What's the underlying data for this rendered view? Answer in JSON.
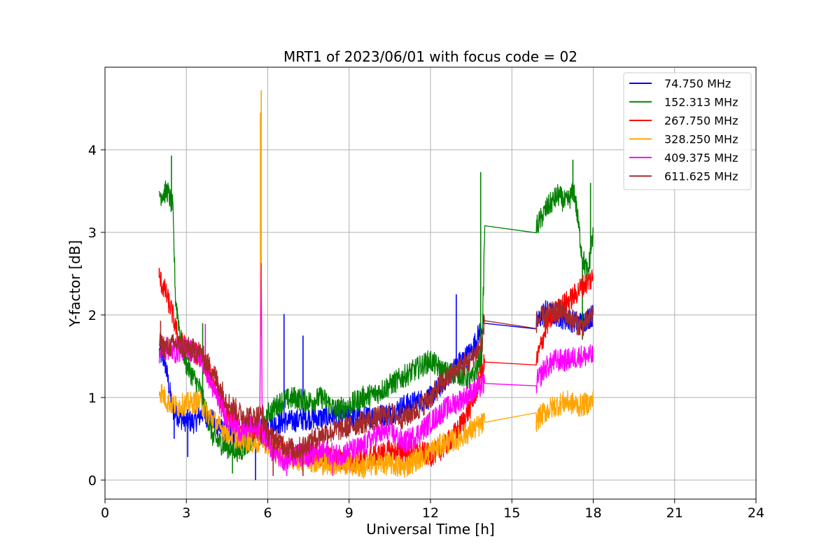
{
  "chart_data": {
    "type": "line",
    "title": "MRT1 of 2023/06/01 with focus code = 02",
    "xlabel": "Universal Time [h]",
    "ylabel": "Y-factor [dB]",
    "xlim": [
      0,
      24
    ],
    "ylim": [
      -0.23,
      5.0
    ],
    "xticks": [
      0,
      3,
      6,
      9,
      12,
      15,
      18,
      21,
      24
    ],
    "yticks": [
      0,
      1,
      2,
      3,
      4
    ],
    "grid": true,
    "legend_position": "top-right",
    "series": [
      {
        "name": " 74.750 MHz",
        "color": "#0000ff",
        "points": [
          [
            2.0,
            1.55
          ],
          [
            2.2,
            1.45
          ],
          [
            2.5,
            0.85
          ],
          [
            2.8,
            0.75
          ],
          [
            3.0,
            0.72
          ],
          [
            3.3,
            0.7
          ],
          [
            3.6,
            0.82
          ],
          [
            4.0,
            0.7
          ],
          [
            4.5,
            0.55
          ],
          [
            5.0,
            0.5
          ],
          [
            5.5,
            0.6
          ],
          [
            5.8,
            0.6
          ],
          [
            6.0,
            0.65
          ],
          [
            6.5,
            0.7
          ],
          [
            7.0,
            0.72
          ],
          [
            7.5,
            0.75
          ],
          [
            8.0,
            0.75
          ],
          [
            8.5,
            0.78
          ],
          [
            9.0,
            0.78
          ],
          [
            9.5,
            0.75
          ],
          [
            10.0,
            0.78
          ],
          [
            10.5,
            0.8
          ],
          [
            11.0,
            0.9
          ],
          [
            11.5,
            0.95
          ],
          [
            12.0,
            1.0
          ],
          [
            12.5,
            1.2
          ],
          [
            13.0,
            1.4
          ],
          [
            13.5,
            1.55
          ],
          [
            13.95,
            1.9
          ],
          [
            15.9,
            1.89
          ],
          [
            16.2,
            2.05
          ],
          [
            16.6,
            2.0
          ],
          [
            17.0,
            1.95
          ],
          [
            17.5,
            1.9
          ],
          [
            18.0,
            2.0
          ]
        ],
        "spikes": [
          [
            2.55,
            0.5
          ],
          [
            3.05,
            0.28
          ],
          [
            5.55,
            0.0
          ],
          [
            6.6,
            2.01
          ],
          [
            7.3,
            1.75
          ],
          [
            12.95,
            2.25
          ]
        ]
      },
      {
        "name": "152.313 MHz",
        "color": "#008000",
        "points": [
          [
            2.0,
            3.45
          ],
          [
            2.3,
            3.5
          ],
          [
            2.5,
            3.3
          ],
          [
            2.6,
            2.2
          ],
          [
            2.8,
            1.7
          ],
          [
            3.0,
            1.4
          ],
          [
            3.5,
            1.1
          ],
          [
            4.0,
            0.5
          ],
          [
            4.5,
            0.4
          ],
          [
            5.0,
            0.35
          ],
          [
            5.5,
            0.55
          ],
          [
            5.8,
            0.5
          ],
          [
            6.0,
            0.8
          ],
          [
            6.5,
            0.95
          ],
          [
            7.0,
            1.0
          ],
          [
            7.5,
            0.95
          ],
          [
            8.0,
            1.0
          ],
          [
            8.5,
            0.85
          ],
          [
            9.0,
            0.9
          ],
          [
            9.5,
            1.0
          ],
          [
            10.0,
            1.05
          ],
          [
            10.5,
            1.15
          ],
          [
            11.0,
            1.25
          ],
          [
            11.5,
            1.35
          ],
          [
            12.0,
            1.45
          ],
          [
            12.5,
            1.3
          ],
          [
            13.0,
            1.3
          ],
          [
            13.5,
            1.2
          ],
          [
            13.9,
            1.5
          ],
          [
            14.0,
            3.08
          ],
          [
            15.9,
            3.06
          ],
          [
            16.3,
            3.3
          ],
          [
            16.7,
            3.45
          ],
          [
            17.0,
            3.35
          ],
          [
            17.3,
            3.5
          ],
          [
            17.6,
            2.7
          ],
          [
            17.8,
            2.5
          ],
          [
            18.0,
            3.0
          ]
        ],
        "spikes": [
          [
            2.45,
            3.93
          ],
          [
            3.6,
            1.9
          ],
          [
            4.7,
            0.08
          ],
          [
            13.85,
            3.73
          ],
          [
            17.25,
            3.88
          ],
          [
            17.9,
            3.6
          ],
          [
            17.6,
            1.7
          ]
        ]
      },
      {
        "name": "267.750 MHz",
        "color": "#ff0000",
        "points": [
          [
            2.0,
            2.45
          ],
          [
            2.2,
            2.3
          ],
          [
            2.5,
            2.0
          ],
          [
            2.7,
            1.7
          ],
          [
            3.0,
            1.6
          ],
          [
            3.5,
            1.5
          ],
          [
            4.0,
            1.2
          ],
          [
            4.5,
            0.8
          ],
          [
            5.0,
            0.6
          ],
          [
            5.5,
            0.65
          ],
          [
            6.0,
            0.5
          ],
          [
            6.5,
            0.4
          ],
          [
            7.0,
            0.3
          ],
          [
            7.5,
            0.35
          ],
          [
            8.0,
            0.3
          ],
          [
            8.5,
            0.25
          ],
          [
            9.0,
            0.2
          ],
          [
            9.5,
            0.25
          ],
          [
            10.0,
            0.3
          ],
          [
            10.5,
            0.35
          ],
          [
            11.0,
            0.35
          ],
          [
            11.5,
            0.35
          ],
          [
            12.0,
            0.3
          ],
          [
            12.5,
            0.4
          ],
          [
            13.0,
            0.6
          ],
          [
            13.5,
            0.9
          ],
          [
            13.9,
            1.3
          ],
          [
            14.0,
            1.43
          ],
          [
            15.9,
            1.43
          ],
          [
            16.3,
            1.9
          ],
          [
            16.8,
            2.1
          ],
          [
            17.2,
            2.2
          ],
          [
            17.6,
            2.35
          ],
          [
            18.0,
            2.45
          ]
        ],
        "spikes": [
          [
            2.0,
            2.57
          ],
          [
            17.95,
            2.55
          ]
        ]
      },
      {
        "name": "328.250 MHz",
        "color": "#ffa500",
        "points": [
          [
            2.0,
            1.1
          ],
          [
            2.3,
            0.95
          ],
          [
            2.6,
            0.9
          ],
          [
            3.0,
            0.92
          ],
          [
            3.5,
            0.95
          ],
          [
            3.8,
            0.8
          ],
          [
            4.2,
            0.65
          ],
          [
            4.6,
            0.55
          ],
          [
            5.0,
            0.5
          ],
          [
            5.5,
            0.45
          ],
          [
            5.7,
            0.45
          ],
          [
            5.75,
            2.6
          ],
          [
            5.8,
            0.5
          ],
          [
            6.2,
            0.35
          ],
          [
            6.6,
            0.3
          ],
          [
            7.0,
            0.25
          ],
          [
            7.5,
            0.25
          ],
          [
            8.0,
            0.2
          ],
          [
            8.5,
            0.2
          ],
          [
            9.0,
            0.2
          ],
          [
            9.5,
            0.15
          ],
          [
            10.0,
            0.2
          ],
          [
            10.5,
            0.2
          ],
          [
            11.0,
            0.15
          ],
          [
            11.5,
            0.25
          ],
          [
            12.0,
            0.35
          ],
          [
            12.5,
            0.45
          ],
          [
            13.0,
            0.5
          ],
          [
            13.5,
            0.6
          ],
          [
            13.9,
            0.68
          ],
          [
            14.0,
            0.7
          ],
          [
            15.9,
            0.72
          ],
          [
            16.2,
            0.82
          ],
          [
            16.6,
            0.9
          ],
          [
            17.0,
            0.95
          ],
          [
            17.5,
            0.9
          ],
          [
            18.0,
            0.95
          ]
        ],
        "spikes": [
          [
            5.76,
            4.72
          ],
          [
            5.73,
            4.45
          ],
          [
            15.9,
            0.6
          ]
        ]
      },
      {
        "name": "409.375 MHz",
        "color": "#ff00ff",
        "points": [
          [
            2.0,
            1.55
          ],
          [
            2.3,
            1.6
          ],
          [
            2.6,
            1.55
          ],
          [
            3.0,
            1.6
          ],
          [
            3.3,
            1.55
          ],
          [
            3.6,
            1.45
          ],
          [
            4.0,
            1.1
          ],
          [
            4.5,
            0.75
          ],
          [
            5.0,
            0.6
          ],
          [
            5.5,
            0.65
          ],
          [
            5.7,
            0.6
          ],
          [
            5.76,
            2.55
          ],
          [
            5.8,
            0.55
          ],
          [
            6.2,
            0.35
          ],
          [
            6.6,
            0.25
          ],
          [
            7.0,
            0.3
          ],
          [
            7.5,
            0.3
          ],
          [
            8.0,
            0.35
          ],
          [
            8.5,
            0.3
          ],
          [
            9.0,
            0.35
          ],
          [
            9.5,
            0.4
          ],
          [
            10.0,
            0.55
          ],
          [
            10.5,
            0.6
          ],
          [
            11.0,
            0.45
          ],
          [
            11.5,
            0.55
          ],
          [
            12.0,
            0.7
          ],
          [
            12.5,
            0.85
          ],
          [
            13.0,
            0.95
          ],
          [
            13.5,
            1.05
          ],
          [
            13.9,
            1.15
          ],
          [
            14.0,
            1.17
          ],
          [
            15.9,
            1.17
          ],
          [
            16.2,
            1.35
          ],
          [
            16.6,
            1.45
          ],
          [
            17.0,
            1.45
          ],
          [
            17.5,
            1.5
          ],
          [
            18.0,
            1.5
          ]
        ],
        "spikes": [
          [
            3.7,
            1.89
          ],
          [
            6.7,
            0.05
          ],
          [
            8.4,
            0.05
          ]
        ]
      },
      {
        "name": "611.625 MHz",
        "color": "#a52a2a",
        "points": [
          [
            2.0,
            1.65
          ],
          [
            2.3,
            1.6
          ],
          [
            2.6,
            1.65
          ],
          [
            3.0,
            1.6
          ],
          [
            3.5,
            1.55
          ],
          [
            4.0,
            1.3
          ],
          [
            4.5,
            0.95
          ],
          [
            5.0,
            0.8
          ],
          [
            5.5,
            0.75
          ],
          [
            5.8,
            0.8
          ],
          [
            6.0,
            0.55
          ],
          [
            6.5,
            0.45
          ],
          [
            7.0,
            0.35
          ],
          [
            7.5,
            0.45
          ],
          [
            8.0,
            0.55
          ],
          [
            8.5,
            0.6
          ],
          [
            9.0,
            0.65
          ],
          [
            9.5,
            0.7
          ],
          [
            10.0,
            0.75
          ],
          [
            10.5,
            0.8
          ],
          [
            11.0,
            0.75
          ],
          [
            11.5,
            0.85
          ],
          [
            12.0,
            1.0
          ],
          [
            12.5,
            1.2
          ],
          [
            13.0,
            1.35
          ],
          [
            13.5,
            1.45
          ],
          [
            13.9,
            1.65
          ],
          [
            14.0,
            1.93
          ],
          [
            15.9,
            1.92
          ],
          [
            16.3,
            2.0
          ],
          [
            16.8,
            2.05
          ],
          [
            17.2,
            1.95
          ],
          [
            17.6,
            1.85
          ],
          [
            18.0,
            2.0
          ]
        ],
        "spikes": [
          [
            2.05,
            1.93
          ],
          [
            6.2,
            0.05
          ],
          [
            7.3,
            0.05
          ]
        ]
      }
    ]
  }
}
